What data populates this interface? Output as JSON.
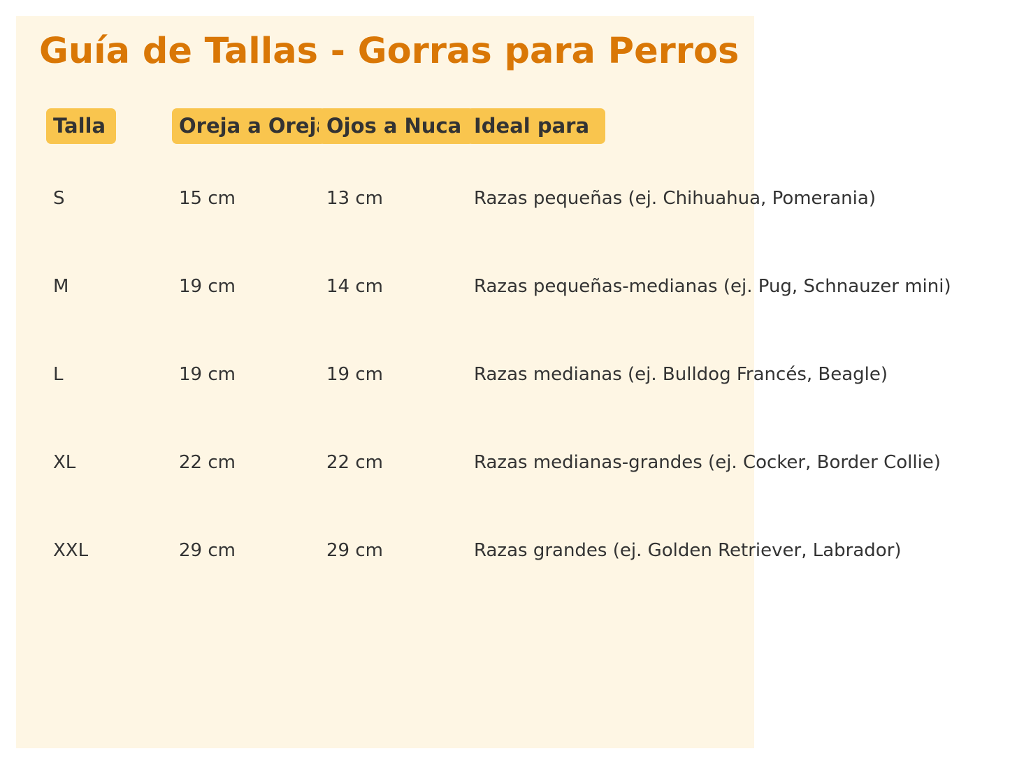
{
  "title": "Guía de Tallas - Gorras para Perros",
  "colors": {
    "title": "#D97706",
    "header_bg": "#F9C54E",
    "panel_bg": "#FEF6E4",
    "text": "#333333"
  },
  "table": {
    "headers": [
      "Talla",
      "Oreja a Oreja",
      "Ojos a Nuca",
      "Ideal para"
    ],
    "rows": [
      [
        "S",
        "15 cm",
        "13 cm",
        "Razas pequeñas (ej. Chihuahua, Pomerania)"
      ],
      [
        "M",
        "19 cm",
        "14 cm",
        "Razas pequeñas-medianas (ej. Pug, Schnauzer mini)"
      ],
      [
        "L",
        "19 cm",
        "19 cm",
        "Razas medianas (ej. Bulldog Francés, Beagle)"
      ],
      [
        "XL",
        "22 cm",
        "22 cm",
        "Razas medianas-grandes (ej. Cocker, Border Collie)"
      ],
      [
        "XXL",
        "29 cm",
        "29 cm",
        "Razas grandes (ej. Golden Retriever, Labrador)"
      ]
    ]
  }
}
